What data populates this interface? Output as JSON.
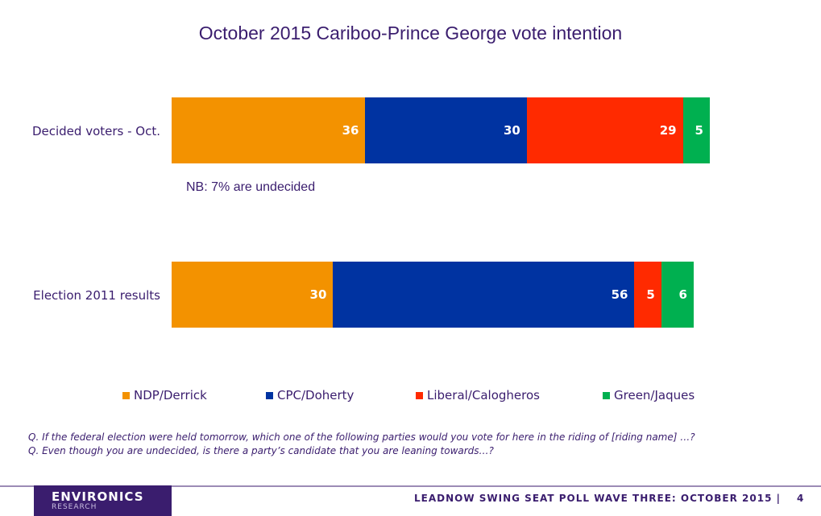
{
  "chart_data": {
    "type": "bar",
    "orientation": "horizontal",
    "stacked": true,
    "title": "October 2015 Cariboo-Prince George vote intention",
    "categories": [
      "Decided voters - Oct.",
      "Election 2011 results"
    ],
    "series": [
      {
        "name": "NDP/Derrick",
        "color": "#f39200",
        "values": [
          36,
          30
        ]
      },
      {
        "name": "CPC/Doherty",
        "color": "#0033a1",
        "values": [
          30,
          56
        ]
      },
      {
        "name": "Liberal/Calogheros",
        "color": "#ff2a00",
        "values": [
          29,
          5
        ]
      },
      {
        "name": "Green/Jaques",
        "color": "#00b050",
        "values": [
          5,
          6
        ]
      }
    ],
    "legend_position": "bottom",
    "grid": false
  },
  "note": "NB: 7% are undecided",
  "questions": [
    "Q. If the federal election were held tomorrow, which one of the following parties would you vote for here in the riding of [riding name] …?",
    "Q. Even though you are undecided, is there a party’s candidate that you are leaning towards…?"
  ],
  "footer": {
    "logo_main": "ENVIRONICS",
    "logo_sub": "RESEARCH",
    "text": "LEADNOW SWING SEAT POLL WAVE THREE: OCTOBER 2015 |",
    "page_number": "4"
  }
}
